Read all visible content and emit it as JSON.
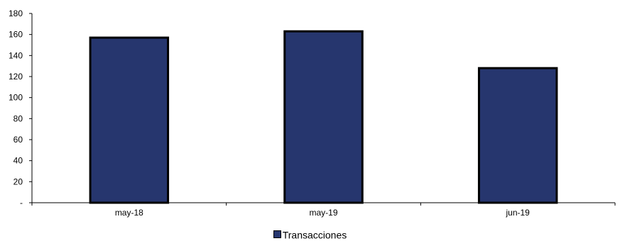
{
  "chart_data": {
    "type": "bar",
    "categories": [
      "may-18",
      "may-19",
      "jun-19"
    ],
    "series": [
      {
        "name": "Transacciones",
        "values": [
          157,
          163,
          128
        ],
        "color": "#26366e"
      }
    ],
    "ylim": [
      0,
      180
    ],
    "yticks": [
      0,
      20,
      40,
      60,
      80,
      100,
      120,
      140,
      160,
      180
    ],
    "ytick_labels": [
      "-",
      "20",
      "40",
      "60",
      "80",
      "100",
      "120",
      "140",
      "160",
      "180"
    ],
    "title": "",
    "xlabel": "",
    "ylabel": "",
    "grid": false,
    "legend_position": "bottom-center",
    "bar_outline_color": "#000000"
  }
}
